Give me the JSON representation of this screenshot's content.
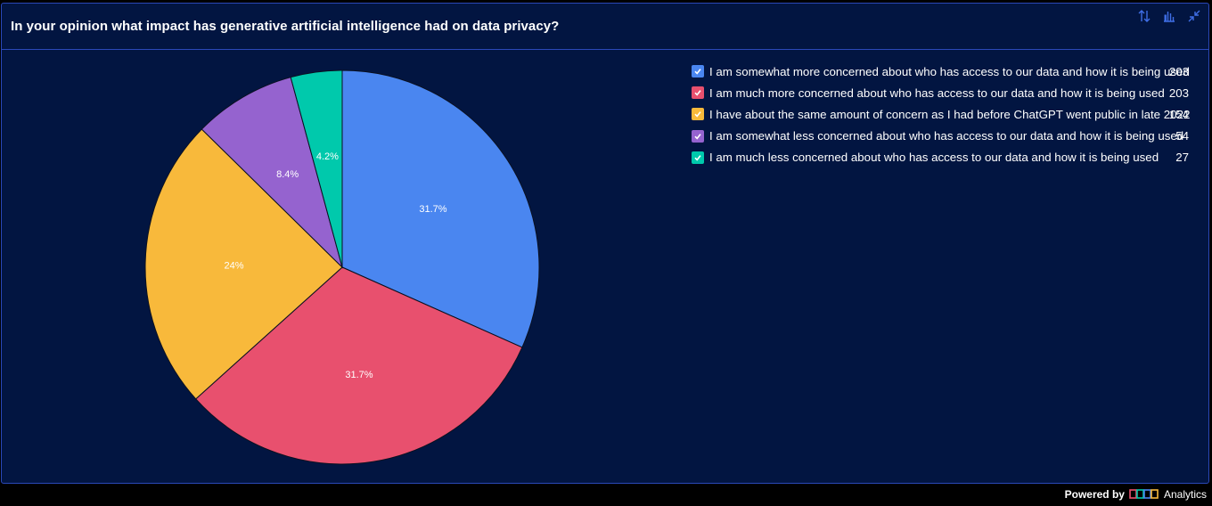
{
  "title": "In your opinion what impact has generative artificial intelligence had on data privacy?",
  "toolbar": {
    "sort_icon": "sort-arrows-icon",
    "chart_type_icon": "bar-chart-icon",
    "collapse_icon": "collapse-icon"
  },
  "footer": {
    "powered_by": "Powered by",
    "brand": "Analytics",
    "logo_icon": "brand-logo-icon"
  },
  "colors": {
    "background": "#021541",
    "border": "#2a48b8",
    "slice_stroke": "#0a1020"
  },
  "chart_data": {
    "type": "pie",
    "title": "In your opinion what impact has generative artificial intelligence had on data privacy?",
    "legend_position": "top-right",
    "slices": [
      {
        "label": "I am somewhat more concerned about who has access to our data and how it is being used",
        "value": 203,
        "percent_label": "31.7%",
        "color": "#4a86f0"
      },
      {
        "label": "I am much more concerned about who has access to our data and how it is being used",
        "value": 203,
        "percent_label": "31.7%",
        "color": "#e8506e"
      },
      {
        "label": "I have about the same amount of concern as I had before ChatGPT went public in late 2022",
        "value": 154,
        "percent_label": "24%",
        "color": "#f8b93b"
      },
      {
        "label": "I am somewhat less concerned about who has access to our data and how it is being used",
        "value": 54,
        "percent_label": "8.4%",
        "color": "#9563cf"
      },
      {
        "label": "I am much less concerned about who has access to our data and how it is being used",
        "value": 27,
        "percent_label": "4.2%",
        "color": "#00c9ac"
      }
    ]
  }
}
